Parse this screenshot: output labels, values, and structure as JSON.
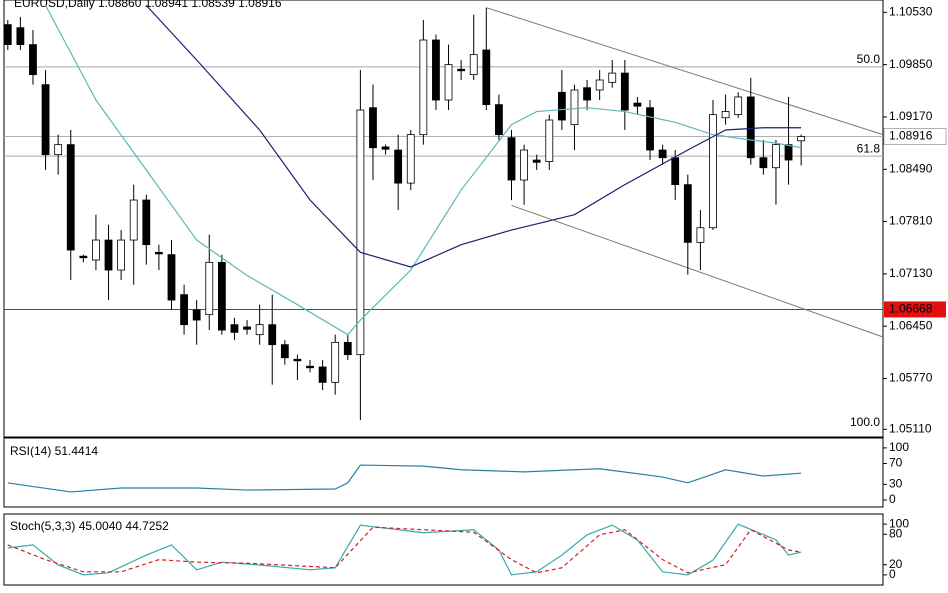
{
  "chart_data": [
    {
      "type": "candlestick",
      "title": "EURUSD,Daily 1.08860 1.08941 1.08539 1.08916",
      "xlim": [
        -0.3,
        69.5
      ],
      "ylim": [
        1.0501,
        1.1069
      ],
      "yticks": [
        {
          "value": 1.1053,
          "label": "1.10530"
        },
        {
          "value": 1.0985,
          "label": "1.09850"
        },
        {
          "value": 1.0917,
          "label": "1.09170"
        },
        {
          "value": 1.0849,
          "label": "1.08490"
        },
        {
          "value": 1.0781,
          "label": "1.07810"
        },
        {
          "value": 1.0713,
          "label": "1.07130"
        },
        {
          "value": 1.0645,
          "label": "1.06450"
        },
        {
          "value": 1.0577,
          "label": "1.05770"
        },
        {
          "value": 1.0511,
          "label": "1.05110"
        }
      ],
      "up_color": "#ffffff",
      "down_color": "#000000",
      "open": [
        1.1037,
        1.1033,
        1.1011,
        1.0959,
        1.0868,
        1.0881,
        1.0736,
        1.0731,
        1.0757,
        1.0718,
        1.0757,
        1.0809,
        1.0741,
        1.0738,
        1.0686,
        1.0666,
        1.066,
        1.0728,
        1.0647,
        1.0644,
        1.0634,
        1.0647,
        1.0621,
        1.0602,
        1.0593,
        1.0592,
        1.0572,
        1.0624,
        1.0608,
        1.0929,
        1.0878,
        1.0874,
        1.0831,
        1.0894,
        1.1017,
        1.0939,
        1.0979,
        1.0972,
        1.1004,
        1.0933,
        1.089,
        1.0835,
        1.0861,
        1.0859,
        1.0949,
        1.0907,
        1.0955,
        1.0952,
        1.0962,
        1.0974,
        1.0935,
        1.0929,
        1.0874,
        1.0864,
        1.0829,
        1.0754,
        1.0773,
        1.0916,
        1.092,
        1.0943,
        1.0864,
        1.0851,
        1.0881,
        1.0886
      ],
      "high": [
        1.1043,
        1.1047,
        1.103,
        1.0978,
        1.0894,
        1.09,
        1.0738,
        1.079,
        1.0777,
        1.077,
        1.0829,
        1.0816,
        1.0751,
        1.0757,
        1.0699,
        1.0679,
        1.0764,
        1.0738,
        1.0656,
        1.0653,
        1.0673,
        1.0686,
        1.0627,
        1.0608,
        1.0601,
        1.0601,
        1.0634,
        1.0634,
        1.0978,
        1.0959,
        1.0881,
        1.0894,
        1.09,
        1.1043,
        1.1024,
        1.1011,
        1.0991,
        1.105,
        1.1059,
        1.0946,
        1.09,
        1.0881,
        1.0868,
        1.092,
        1.0978,
        1.0959,
        1.0965,
        1.0978,
        1.0991,
        1.0991,
        1.0943,
        1.0939,
        1.0881,
        1.0874,
        1.0842,
        1.0796,
        1.0939,
        1.0946,
        1.0949,
        1.0968,
        1.0887,
        1.0887,
        1.0943,
        1.08941
      ],
      "low": [
        1.1004,
        1.1004,
        1.0959,
        1.0848,
        1.0842,
        1.0705,
        1.0728,
        1.0718,
        1.0679,
        1.0705,
        1.0699,
        1.0725,
        1.0718,
        1.0666,
        1.0634,
        1.0621,
        1.064,
        1.0634,
        1.0627,
        1.0634,
        1.0621,
        1.0569,
        1.0595,
        1.0575,
        1.0585,
        1.0562,
        1.0556,
        1.0601,
        1.0523,
        1.0835,
        1.0868,
        1.0796,
        1.0822,
        1.0881,
        1.0926,
        1.0926,
        1.0965,
        1.0965,
        1.0926,
        1.0887,
        1.0809,
        1.0803,
        1.0848,
        1.0848,
        1.09,
        1.0874,
        1.0926,
        1.0939,
        1.0955,
        1.09,
        1.092,
        1.0861,
        1.0855,
        1.0809,
        1.0712,
        1.0718,
        1.077,
        1.0907,
        1.0916,
        1.0855,
        1.0842,
        1.0803,
        1.0829,
        1.08539
      ],
      "close": [
        1.1011,
        1.1011,
        1.0972,
        1.0868,
        1.0881,
        1.0744,
        1.0734,
        1.0757,
        1.0718,
        1.0757,
        1.0809,
        1.0751,
        1.0739,
        1.0679,
        1.0647,
        1.0653,
        1.0728,
        1.064,
        1.0637,
        1.0641,
        1.0647,
        1.0621,
        1.0604,
        1.06,
        1.0591,
        1.0572,
        1.0624,
        1.0608,
        1.0926,
        1.0877,
        1.0875,
        1.0831,
        1.0894,
        1.1017,
        1.0939,
        1.0985,
        1.0977,
        1.0998,
        1.0933,
        1.0894,
        1.0835,
        1.0874,
        1.0858,
        1.0913,
        1.0913,
        1.0952,
        1.0939,
        1.0965,
        1.0974,
        1.0926,
        1.0931,
        1.0874,
        1.0864,
        1.0829,
        1.0754,
        1.0773,
        1.092,
        1.0924,
        1.0943,
        1.0864,
        1.0851,
        1.0881,
        1.0861,
        1.08916
      ],
      "overlays": [
        {
          "color": "#5fb7b7",
          "x": [
            3,
            7,
            11,
            15,
            19,
            23,
            27,
            28,
            32,
            36,
            40,
            42,
            46,
            49,
            53,
            56,
            59,
            61,
            63
          ],
          "values": [
            1.1062,
            1.0939,
            1.0848,
            1.0757,
            1.0711,
            1.0673,
            1.0634,
            1.0653,
            1.0718,
            1.0822,
            1.0907,
            1.0924,
            1.0929,
            1.0924,
            1.091,
            1.0894,
            1.0887,
            1.0883,
            1.0877
          ]
        },
        {
          "color": "#1f1f6e",
          "x": [
            11,
            15,
            20,
            24,
            28,
            32,
            36,
            40,
            45,
            49,
            54,
            57,
            60,
            63
          ],
          "values": [
            1.1062,
            1.0991,
            1.09,
            1.0809,
            1.0741,
            1.0722,
            1.0751,
            1.077,
            1.079,
            1.0829,
            1.0874,
            1.09,
            1.0903,
            1.0903
          ]
        }
      ],
      "trendlines": [
        {
          "color": "#7a7a5a",
          "x": [
            38,
            69.5
          ],
          "values": [
            1.1059,
            1.0894
          ]
        },
        {
          "color": "#7a7a5a",
          "x": [
            40,
            69.5
          ],
          "values": [
            1.0802,
            1.0631
          ]
        }
      ],
      "levels": [
        {
          "label": "50.0",
          "value": 1.0982,
          "line": true
        },
        {
          "label": "61.8",
          "value": 1.0866,
          "line": true
        },
        {
          "label": "100.0",
          "value": 1.051,
          "line": false
        }
      ],
      "price_line": 1.08916,
      "price_color": "#b0b0b0",
      "alert_line": 1.06668,
      "alert_color": "#e01010"
    },
    {
      "type": "line",
      "title": "RSI(14) 51.4414",
      "xlim": [
        -0.3,
        69.5
      ],
      "ylim": [
        -13.5,
        119
      ],
      "yticks": [
        0,
        30,
        70,
        100
      ],
      "series": [
        {
          "color": "#2a7fa8",
          "dash": false,
          "x": [
            0,
            5,
            9,
            15,
            19,
            26,
            27,
            28,
            33,
            36,
            41,
            47,
            52,
            54,
            57,
            60,
            63
          ],
          "values": [
            32.7,
            15.4,
            23,
            23,
            19,
            21,
            33,
            67,
            65,
            58,
            54,
            60,
            44,
            33,
            58,
            46,
            51.4414
          ]
        }
      ]
    },
    {
      "type": "line",
      "title": "Stoch(5,3,3) 45.0040 44.7252",
      "xlim": [
        -0.3,
        69.5
      ],
      "ylim": [
        -20,
        120
      ],
      "yticks": [
        0,
        20,
        80,
        100
      ],
      "series": [
        {
          "color": "#3aa9b0",
          "dash": false,
          "x": [
            0,
            2,
            4,
            6,
            8,
            11,
            13,
            15,
            17,
            20,
            24,
            26,
            28,
            33,
            37,
            39,
            40,
            42,
            44,
            46,
            48,
            50,
            52,
            54,
            56,
            58,
            61,
            62,
            63
          ],
          "values": [
            53,
            59,
            19.5,
            0,
            4,
            39,
            59,
            10,
            25,
            19.5,
            10,
            14,
            98,
            83,
            89,
            49,
            0,
            6,
            39,
            79,
            98,
            69,
            6,
            0,
            29,
            100,
            69,
            39,
            45.004
          ]
        },
        {
          "color": "#d02020",
          "dash": true,
          "x": [
            0,
            3,
            6,
            9,
            12,
            15,
            19,
            26,
            29,
            37,
            40,
            42,
            44,
            47,
            49,
            52,
            54,
            57,
            59,
            62,
            63
          ],
          "values": [
            59,
            30,
            6,
            6,
            30,
            25,
            23,
            14,
            94,
            84,
            30,
            4,
            14,
            79,
            89,
            30,
            4,
            20,
            89,
            49,
            44.7252
          ]
        }
      ]
    }
  ]
}
